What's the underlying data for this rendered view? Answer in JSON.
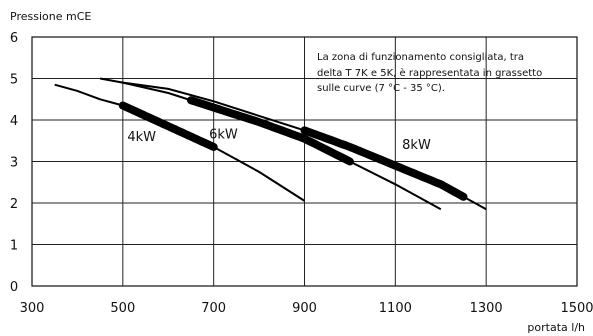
{
  "chart_data": {
    "type": "line",
    "ylabel": "Pressione mCE",
    "xlabel": "portata l/h",
    "xlim": [
      300,
      1500
    ],
    "ylim": [
      0,
      6
    ],
    "xticks": [
      "300",
      "500",
      "700",
      "900",
      "1100",
      "1300",
      "1500"
    ],
    "yticks": [
      "0",
      "1",
      "2",
      "3",
      "4",
      "5",
      "6"
    ],
    "grid": "vertical and horizontal at major ticks",
    "annotation": [
      "La zona di funzionamento consigliata, tra",
      "delta T 7K e 5K, è rappresentata in grassetto",
      "sulle curve (7 °C - 35 °C)."
    ],
    "series": [
      {
        "name": "4kW",
        "x": [
          350,
          400,
          450,
          500,
          550,
          600,
          650,
          700,
          750,
          800,
          850,
          900
        ],
        "y": [
          4.85,
          4.7,
          4.5,
          4.35,
          4.1,
          3.85,
          3.6,
          3.35,
          3.05,
          2.75,
          2.4,
          2.05
        ],
        "bold_range": [
          500,
          700
        ]
      },
      {
        "name": "6kW",
        "x": [
          450,
          500,
          600,
          700,
          800,
          900,
          1000,
          1100,
          1200
        ],
        "y": [
          5.0,
          4.9,
          4.65,
          4.3,
          3.95,
          3.55,
          3.0,
          2.45,
          1.85
        ],
        "bold_range": [
          650,
          1000
        ]
      },
      {
        "name": "8kW",
        "x": [
          500,
          600,
          700,
          800,
          900,
          1000,
          1100,
          1200,
          1300
        ],
        "y": [
          4.9,
          4.75,
          4.45,
          4.1,
          3.75,
          3.35,
          2.9,
          2.45,
          1.85
        ],
        "bold_range": [
          900,
          1250
        ]
      }
    ],
    "curve_labels": [
      {
        "text": "4kW",
        "x": 510,
        "y": 3.5
      },
      {
        "text": "6kW",
        "x": 690,
        "y": 3.55
      },
      {
        "text": "8kW",
        "x": 1115,
        "y": 3.3
      }
    ]
  }
}
